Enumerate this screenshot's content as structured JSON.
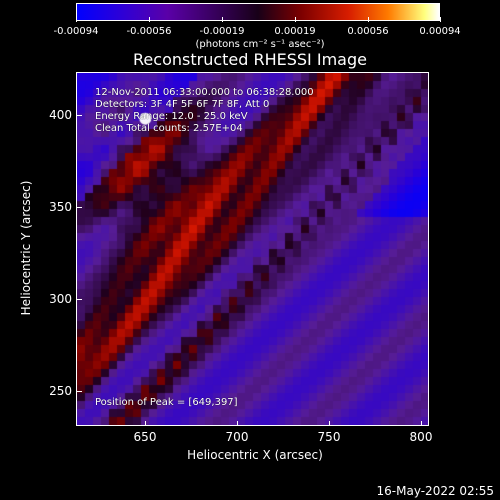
{
  "chart_data": {
    "type": "heatmap",
    "title": "Reconstructed RHESSI Image",
    "xlabel": "Heliocentric X (arcsec)",
    "ylabel": "Heliocentric Y (arcsec)",
    "xlim": [
      612,
      802
    ],
    "ylim": [
      230,
      422
    ],
    "x_ticks": [
      650,
      700,
      750,
      800
    ],
    "y_ticks": [
      250,
      300,
      350,
      400
    ],
    "colorbar": {
      "ticks": [
        "-0.00094",
        "-0.00056",
        "-0.00019",
        "0.00019",
        "0.00056",
        "0.00094"
      ],
      "unit": "(photons cm⁻² s⁻¹ asec⁻²)",
      "min": -0.00094,
      "max": 0.00094,
      "colors": [
        "#0000ff",
        "#2c00d8",
        "#5a00a8",
        "#180018",
        "#7d0000",
        "#d71d00",
        "#ff7b00",
        "#ffff7e",
        "#ffffff"
      ]
    },
    "annotations": [
      "12-Nov-2011 06:33:00.000 to 06:38:28.000",
      "Detectors: 3F 4F 5F 6F 7F 8F, Att 0",
      "Energy Range: 12.0 - 25.0 keV",
      "Clean   Total counts: 2.57E+04"
    ],
    "peak_label": "Position of Peak = [649,397]",
    "peak": [
      649,
      397
    ]
  },
  "footer": {
    "timestamp": "16-May-2022 02:55"
  }
}
